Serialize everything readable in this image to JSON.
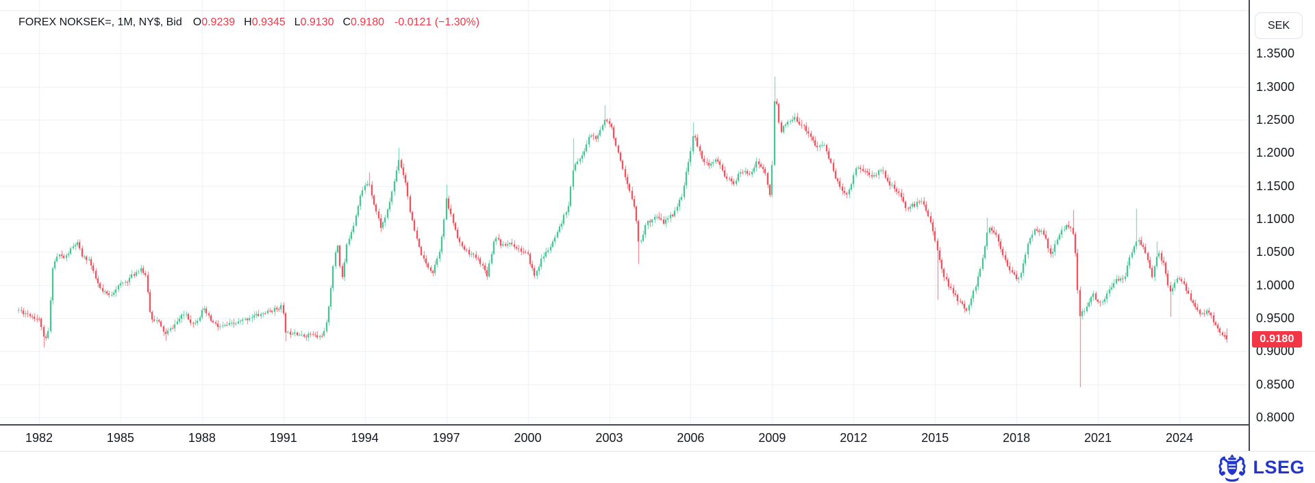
{
  "header": {
    "title": "FOREX NOKSEK=, 1M, NY$, Bid",
    "ohlc": [
      {
        "label": "O",
        "value": "0.9239"
      },
      {
        "label": "H",
        "value": "0.9345"
      },
      {
        "label": "L",
        "value": "0.9130"
      },
      {
        "label": "C",
        "value": "0.9180"
      }
    ],
    "change": "-0.0121 (−1.30%)"
  },
  "price_axis": {
    "currency": "SEK",
    "last_price": "0.9180"
  },
  "footer": {
    "logo_text": "LSEG"
  },
  "colors": {
    "up": "#2ebd85",
    "down": "#f23645",
    "grid": "#eef0f4",
    "pane_top_line": "#e6e8ee",
    "axis_line": "#434651",
    "axis_border": "#e0e3eb",
    "text": "#131722",
    "badge_bg": "#f23645",
    "badge_text": "#ffffff",
    "logo_blue": "#2336cc",
    "background": "#ffffff"
  },
  "chart_data": {
    "type": "candlestick",
    "title": "FOREX NOKSEK=, 1M, NY$, Bid",
    "symbol": "NOKSEK=",
    "interval": "1M",
    "quote_currency": "SEK",
    "grid": true,
    "legend_position": "top-left",
    "y_axis": {
      "label": "SEK",
      "range": [
        0.8,
        1.4153
      ],
      "ticks": [
        1.35,
        1.3,
        1.25,
        1.2,
        1.15,
        1.1,
        1.05,
        1.0,
        0.95,
        0.9,
        0.85,
        0.8
      ]
    },
    "x_axis": {
      "unit": "year",
      "range": [
        1980.56,
        2026.56
      ],
      "ticks": [
        1982,
        1985,
        1988,
        1991,
        1994,
        1997,
        2000,
        2003,
        2006,
        2009,
        2012,
        2015,
        2018,
        2021,
        2024
      ]
    },
    "last_candle": {
      "open": 0.9239,
      "high": 0.9345,
      "low": 0.913,
      "close": 0.918
    },
    "last_change": {
      "abs": -0.0121,
      "pct": -1.3
    },
    "months_start": 1981.25,
    "months_end": 2025.75,
    "trajectory": [
      [
        1981.25,
        0.962
      ],
      [
        1981.6,
        0.956
      ],
      [
        1981.9,
        0.95
      ],
      [
        1982.05,
        0.946
      ],
      [
        1982.2,
        0.912
      ],
      [
        1982.35,
        0.932
      ],
      [
        1982.5,
        1.028
      ],
      [
        1982.7,
        1.046
      ],
      [
        1982.95,
        1.04
      ],
      [
        1983.2,
        1.056
      ],
      [
        1983.4,
        1.064
      ],
      [
        1983.6,
        1.042
      ],
      [
        1983.85,
        1.038
      ],
      [
        1984.05,
        1.012
      ],
      [
        1984.3,
        0.99
      ],
      [
        1984.6,
        0.984
      ],
      [
        1984.9,
        0.998
      ],
      [
        1985.2,
        1.006
      ],
      [
        1985.5,
        1.016
      ],
      [
        1985.75,
        1.026
      ],
      [
        1985.95,
        1.01
      ],
      [
        1986.1,
        0.952
      ],
      [
        1986.4,
        0.944
      ],
      [
        1986.65,
        0.925
      ],
      [
        1986.9,
        0.936
      ],
      [
        1987.2,
        0.95
      ],
      [
        1987.4,
        0.958
      ],
      [
        1987.65,
        0.94
      ],
      [
        1987.9,
        0.952
      ],
      [
        1988.05,
        0.964
      ],
      [
        1988.3,
        0.948
      ],
      [
        1988.6,
        0.936
      ],
      [
        1989.0,
        0.94
      ],
      [
        1989.4,
        0.944
      ],
      [
        1989.8,
        0.952
      ],
      [
        1990.2,
        0.956
      ],
      [
        1990.6,
        0.962
      ],
      [
        1990.95,
        0.968
      ],
      [
        1991.1,
        0.926
      ],
      [
        1991.4,
        0.93
      ],
      [
        1991.7,
        0.922
      ],
      [
        1992.0,
        0.926
      ],
      [
        1992.3,
        0.921
      ],
      [
        1992.55,
        0.93
      ],
      [
        1992.75,
        0.998
      ],
      [
        1992.9,
        1.048
      ],
      [
        1993.0,
        1.06
      ],
      [
        1993.15,
        1.006
      ],
      [
        1993.35,
        1.064
      ],
      [
        1993.6,
        1.094
      ],
      [
        1993.8,
        1.132
      ],
      [
        1994.0,
        1.15
      ],
      [
        1994.15,
        1.156
      ],
      [
        1994.35,
        1.12
      ],
      [
        1994.6,
        1.086
      ],
      [
        1994.85,
        1.114
      ],
      [
        1995.05,
        1.15
      ],
      [
        1995.25,
        1.19
      ],
      [
        1995.5,
        1.156
      ],
      [
        1995.7,
        1.104
      ],
      [
        1995.95,
        1.062
      ],
      [
        1996.2,
        1.034
      ],
      [
        1996.5,
        1.02
      ],
      [
        1996.8,
        1.06
      ],
      [
        1997.0,
        1.128
      ],
      [
        1997.25,
        1.094
      ],
      [
        1997.55,
        1.058
      ],
      [
        1997.85,
        1.048
      ],
      [
        1998.2,
        1.038
      ],
      [
        1998.5,
        1.016
      ],
      [
        1998.8,
        1.076
      ],
      [
        1999.05,
        1.058
      ],
      [
        1999.35,
        1.064
      ],
      [
        1999.7,
        1.054
      ],
      [
        2000.0,
        1.044
      ],
      [
        2000.25,
        1.014
      ],
      [
        2000.55,
        1.042
      ],
      [
        2000.9,
        1.062
      ],
      [
        2001.2,
        1.088
      ],
      [
        2001.5,
        1.122
      ],
      [
        2001.7,
        1.182
      ],
      [
        2002.0,
        1.194
      ],
      [
        2002.3,
        1.228
      ],
      [
        2002.55,
        1.22
      ],
      [
        2002.85,
        1.252
      ],
      [
        2003.05,
        1.244
      ],
      [
        2003.3,
        1.202
      ],
      [
        2003.6,
        1.158
      ],
      [
        2003.95,
        1.118
      ],
      [
        2004.1,
        1.058
      ],
      [
        2004.35,
        1.092
      ],
      [
        2004.7,
        1.104
      ],
      [
        2005.0,
        1.094
      ],
      [
        2005.35,
        1.108
      ],
      [
        2005.65,
        1.132
      ],
      [
        2005.95,
        1.192
      ],
      [
        2006.1,
        1.23
      ],
      [
        2006.35,
        1.198
      ],
      [
        2006.65,
        1.178
      ],
      [
        2006.95,
        1.19
      ],
      [
        2007.25,
        1.166
      ],
      [
        2007.55,
        1.152
      ],
      [
        2007.85,
        1.172
      ],
      [
        2008.15,
        1.168
      ],
      [
        2008.45,
        1.186
      ],
      [
        2008.75,
        1.17
      ],
      [
        2008.95,
        1.126
      ],
      [
        2009.1,
        1.295
      ],
      [
        2009.3,
        1.232
      ],
      [
        2009.55,
        1.244
      ],
      [
        2009.85,
        1.252
      ],
      [
        2010.05,
        1.244
      ],
      [
        2010.35,
        1.23
      ],
      [
        2010.65,
        1.206
      ],
      [
        2010.9,
        1.214
      ],
      [
        2011.2,
        1.178
      ],
      [
        2011.5,
        1.146
      ],
      [
        2011.8,
        1.138
      ],
      [
        2012.1,
        1.18
      ],
      [
        2012.4,
        1.172
      ],
      [
        2012.75,
        1.164
      ],
      [
        2013.0,
        1.176
      ],
      [
        2013.35,
        1.152
      ],
      [
        2013.65,
        1.138
      ],
      [
        2013.95,
        1.116
      ],
      [
        2014.25,
        1.122
      ],
      [
        2014.55,
        1.128
      ],
      [
        2014.85,
        1.094
      ],
      [
        2015.05,
        1.056
      ],
      [
        2015.35,
        1.012
      ],
      [
        2015.65,
        0.988
      ],
      [
        2015.95,
        0.972
      ],
      [
        2016.15,
        0.962
      ],
      [
        2016.45,
        0.992
      ],
      [
        2016.75,
        1.038
      ],
      [
        2016.95,
        1.086
      ],
      [
        2017.2,
        1.08
      ],
      [
        2017.5,
        1.048
      ],
      [
        2017.8,
        1.018
      ],
      [
        2018.1,
        1.008
      ],
      [
        2018.4,
        1.06
      ],
      [
        2018.7,
        1.086
      ],
      [
        2019.0,
        1.078
      ],
      [
        2019.25,
        1.044
      ],
      [
        2019.55,
        1.074
      ],
      [
        2019.85,
        1.092
      ],
      [
        2020.05,
        1.086
      ],
      [
        2020.2,
        1.036
      ],
      [
        2020.3,
        0.954
      ],
      [
        2020.55,
        0.962
      ],
      [
        2020.8,
        0.986
      ],
      [
        2021.05,
        0.972
      ],
      [
        2021.35,
        0.986
      ],
      [
        2021.65,
        1.01
      ],
      [
        2021.95,
        1.006
      ],
      [
        2022.2,
        1.046
      ],
      [
        2022.45,
        1.07
      ],
      [
        2022.7,
        1.056
      ],
      [
        2023.0,
        1.012
      ],
      [
        2023.2,
        1.05
      ],
      [
        2023.45,
        1.028
      ],
      [
        2023.65,
        0.988
      ],
      [
        2023.95,
        1.01
      ],
      [
        2024.15,
        1.002
      ],
      [
        2024.45,
        0.976
      ],
      [
        2024.7,
        0.958
      ],
      [
        2025.0,
        0.96
      ],
      [
        2025.25,
        0.946
      ],
      [
        2025.45,
        0.932
      ],
      [
        2025.6,
        0.924
      ],
      [
        2025.75,
        0.918
      ]
    ],
    "extreme_wicks": [
      {
        "year": 1982.2,
        "low": 0.905
      },
      {
        "year": 1986.65,
        "low": 0.916
      },
      {
        "year": 1991.1,
        "low": 0.915
      },
      {
        "year": 1994.15,
        "high": 1.17
      },
      {
        "year": 1995.25,
        "high": 1.207
      },
      {
        "year": 1997.0,
        "high": 1.152
      },
      {
        "year": 2001.7,
        "high": 1.222
      },
      {
        "year": 2002.85,
        "high": 1.272
      },
      {
        "year": 2004.1,
        "low": 1.032
      },
      {
        "year": 2006.1,
        "high": 1.246
      },
      {
        "year": 2009.1,
        "high": 1.315
      },
      {
        "year": 2015.05,
        "low": 0.978
      },
      {
        "year": 2016.95,
        "high": 1.102
      },
      {
        "year": 2020.05,
        "high": 1.113
      },
      {
        "year": 2020.3,
        "low": 0.845
      },
      {
        "year": 2022.45,
        "high": 1.115
      },
      {
        "year": 2023.2,
        "high": 1.066
      },
      {
        "year": 2023.65,
        "low": 0.952
      }
    ]
  }
}
